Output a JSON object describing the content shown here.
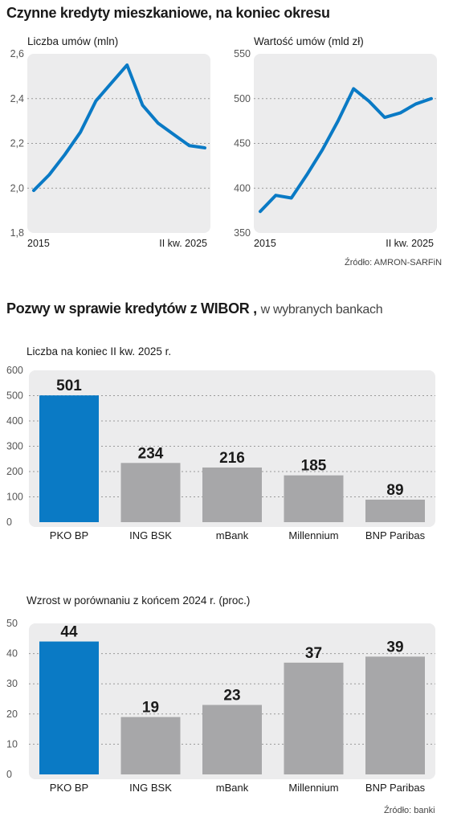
{
  "section1": {
    "title": "Czynne kredyty mieszkaniowe, na koniec okresu",
    "source": "Źródło: AMRON-SARFiN"
  },
  "section2": {
    "title": "Pozwy w sprawie kredytów z WIBOR ,",
    "title_suffix": "w wybranych bankach",
    "source": "Źródło: banki"
  },
  "colors": {
    "highlight": "#0a7ac5",
    "bar": "#a7a7a9",
    "panel": "#ececed",
    "line": "#0a7ac5"
  },
  "chart_data": [
    {
      "type": "line",
      "title": "Liczba umów (mln)",
      "x_labels": [
        "2015",
        "II kw. 2025"
      ],
      "values": [
        1.99,
        2.06,
        2.15,
        2.25,
        2.39,
        2.47,
        2.55,
        2.37,
        2.29,
        2.24,
        2.19,
        2.18
      ],
      "ylim": [
        1.8,
        2.6
      ],
      "yticks": [
        "1,8",
        "2,0",
        "2,2",
        "2,4",
        "2,6"
      ],
      "grid": true
    },
    {
      "type": "line",
      "title": "Wartość umów (mld zł)",
      "x_labels": [
        "2015",
        "II kw. 2025"
      ],
      "values": [
        374,
        392,
        389,
        415,
        443,
        475,
        511,
        497,
        479,
        484,
        494,
        500
      ],
      "ylim": [
        350,
        550
      ],
      "yticks": [
        "350",
        "400",
        "450",
        "500",
        "550"
      ],
      "grid": true
    },
    {
      "type": "bar",
      "title": "Liczba na koniec II kw. 2025 r.",
      "categories": [
        "PKO BP",
        "ING BSK",
        "mBank",
        "Millennium",
        "BNP Paribas"
      ],
      "values": [
        501,
        234,
        216,
        185,
        89
      ],
      "labels": [
        "501",
        "234",
        "216",
        "185",
        "89"
      ],
      "highlight": [
        true,
        false,
        false,
        false,
        false
      ],
      "ylim": [
        0,
        600
      ],
      "yticks": [
        "0",
        "100",
        "200",
        "300",
        "400",
        "500",
        "600"
      ],
      "grid": true
    },
    {
      "type": "bar",
      "title": "Wzrost w porównaniu z końcem 2024 r. (proc.)",
      "categories": [
        "PKO BP",
        "ING BSK",
        "mBank",
        "Millennium",
        "BNP Paribas"
      ],
      "values": [
        44,
        19,
        23,
        37,
        39
      ],
      "labels": [
        "44",
        "19",
        "23",
        "37",
        "39"
      ],
      "highlight": [
        true,
        false,
        false,
        false,
        false
      ],
      "ylim": [
        0,
        50
      ],
      "yticks": [
        "0",
        "10",
        "20",
        "30",
        "40",
        "50"
      ],
      "grid": true
    }
  ]
}
